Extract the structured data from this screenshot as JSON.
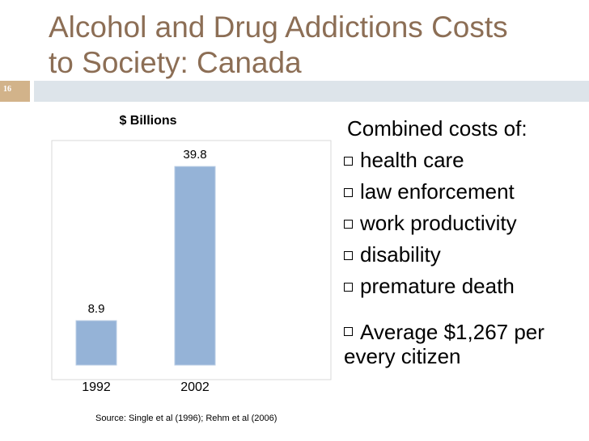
{
  "slide": {
    "title_line1": "Alcohol and Drug Addictions Costs",
    "title_line2": "to Society: Canada",
    "number": "16"
  },
  "bullets": {
    "lead": "Combined costs of:",
    "items": [
      "health care",
      "law enforcement",
      "work productivity",
      "disability",
      "premature death"
    ],
    "summary": "Average $1,267 per every citizen"
  },
  "chart_data": {
    "type": "bar",
    "title": "$ Billions",
    "categories": [
      "1992",
      "2002"
    ],
    "values": [
      8.9,
      39.8
    ],
    "data_labels": [
      "8.9",
      "39.8"
    ],
    "ylim": [
      0,
      45
    ],
    "grid": false,
    "bar_color": "#95b3d7",
    "source": "Source:  Single et al (1996); Rehm et al (2006)"
  }
}
